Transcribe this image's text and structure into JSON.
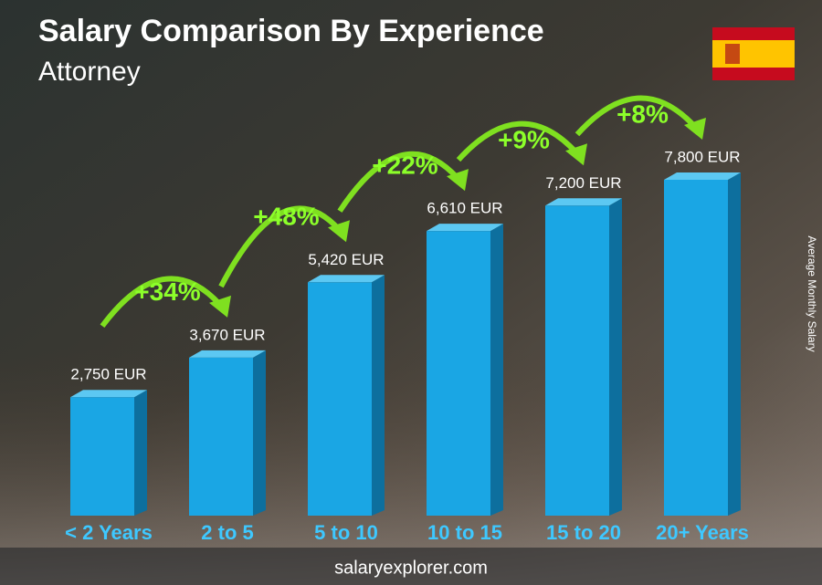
{
  "chart_data": {
    "type": "bar",
    "title": "Salary Comparison By Experience",
    "subtitle": "Attorney",
    "categories": [
      "< 2 Years",
      "2 to 5",
      "5 to 10",
      "10 to 15",
      "15 to 20",
      "20+ Years"
    ],
    "values": [
      2750,
      3670,
      5420,
      6610,
      7200,
      7800
    ],
    "value_labels": [
      "2,750 EUR",
      "3,670 EUR",
      "5,420 EUR",
      "6,610 EUR",
      "7,200 EUR",
      "7,800 EUR"
    ],
    "changes": [
      "+34%",
      "+48%",
      "+22%",
      "+9%",
      "+8%"
    ],
    "y_axis_label": "Average Monthly Salary",
    "footer": "salaryexplorer.com",
    "color": "#1aa6e4"
  }
}
